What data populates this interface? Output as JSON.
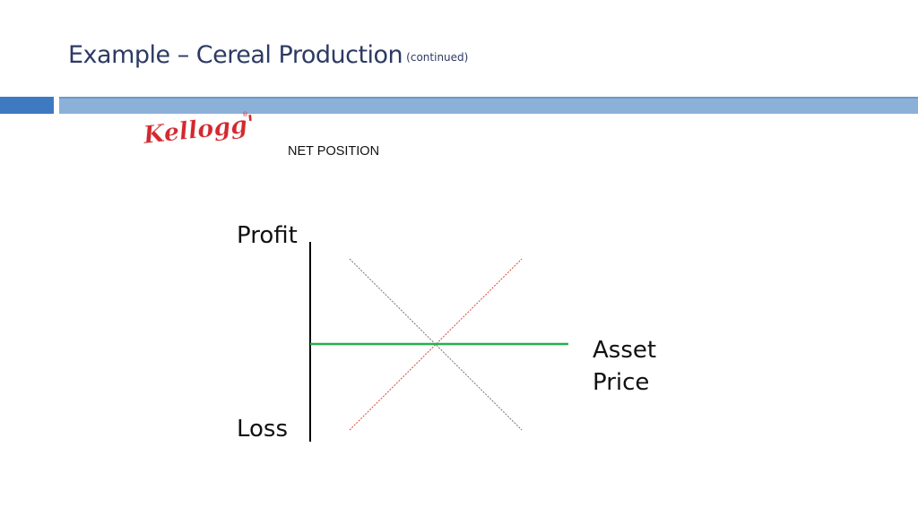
{
  "title": {
    "main": "Example – Cereal Production",
    "sub": "(continued)"
  },
  "logo": {
    "text": "Kellogg's",
    "mark": "®",
    "color": "#d3282f"
  },
  "diagram": {
    "heading": "NET POSITION",
    "y_top_label": "Profit",
    "y_bottom_label": "Loss",
    "x_label_line1": "Asset",
    "x_label_line2": "Price",
    "net_line_color": "#22b14c",
    "long_line_color": "#d9473a",
    "short_line_color": "#7f6f6f",
    "axis_color": "#000000"
  },
  "theme": {
    "title_color": "#2d3a63",
    "bar_dark": "#3d7ac2",
    "bar_light": "#8cb1d9"
  }
}
